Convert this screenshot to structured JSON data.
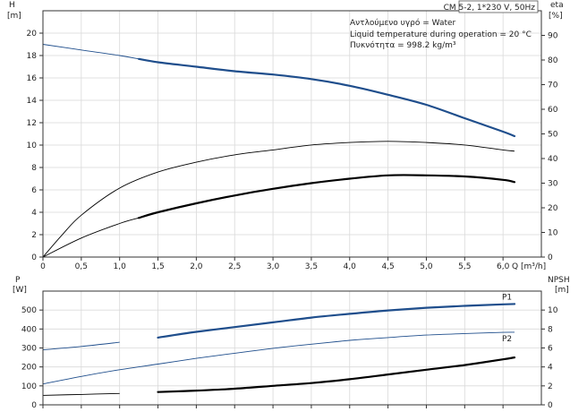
{
  "chart_data": [
    {
      "type": "line",
      "info": {
        "pump": "CM 5-2, 1*230 V, 50Hz",
        "liquid": "Αντλούμενο υγρό = Water",
        "temperature": "Liquid temperature during operation = 20 °C",
        "density": "Πυκνότητα = 998.2 kg/m³"
      },
      "x_axis": {
        "label": "Q [m³/h]",
        "range": [
          0,
          6.5
        ],
        "ticks": [
          0,
          0.5,
          1.0,
          1.5,
          2.0,
          2.5,
          3.0,
          3.5,
          4.0,
          4.5,
          5.0,
          5.5,
          6.0
        ],
        "tick_labels": [
          "0",
          "0,5",
          "1,0",
          "1,5",
          "2,0",
          "2,5",
          "3,0",
          "3,5",
          "4,0",
          "4,5",
          "5,0",
          "5,5",
          "6,0"
        ]
      },
      "y_left": {
        "label_top": "H",
        "label_unit": "[m]",
        "range": [
          0,
          22
        ],
        "ticks": [
          0,
          2,
          4,
          6,
          8,
          10,
          12,
          14,
          16,
          18,
          20
        ],
        "tick_labels": [
          "0",
          "2",
          "4",
          "6",
          "8",
          "10",
          "12",
          "14",
          "16",
          "18",
          "20"
        ]
      },
      "y_right": {
        "label_top": "eta",
        "label_unit": "[%]",
        "range": [
          0,
          100
        ],
        "ticks": [
          0,
          10,
          20,
          30,
          40,
          50,
          60,
          70,
          80,
          90
        ],
        "tick_labels": [
          "0",
          "10",
          "20",
          "30",
          "40",
          "50",
          "60",
          "70",
          "80",
          "90"
        ]
      },
      "grid": true,
      "series": [
        {
          "axis": "left",
          "color": "#1f4e8c",
          "thin_until": 1.25,
          "x": [
            0,
            0.5,
            1.0,
            1.25,
            1.5,
            2.0,
            2.5,
            3.0,
            3.5,
            4.0,
            4.5,
            5.0,
            5.5,
            6.0,
            6.15
          ],
          "y": [
            19.0,
            18.5,
            18.0,
            17.7,
            17.4,
            17.0,
            16.6,
            16.3,
            15.9,
            15.3,
            14.5,
            13.6,
            12.4,
            11.2,
            10.8
          ]
        },
        {
          "axis": "right",
          "color": "#000000",
          "thin_until": 6.2,
          "x": [
            0,
            0.25,
            0.5,
            1.0,
            1.5,
            2.0,
            2.5,
            3.0,
            3.5,
            4.0,
            4.5,
            5.0,
            5.5,
            6.0,
            6.15
          ],
          "y": [
            0,
            9,
            17,
            28,
            34.5,
            38.5,
            41.5,
            43.5,
            45.5,
            46.5,
            47,
            46.5,
            45.5,
            43.5,
            43
          ]
        },
        {
          "axis": "left",
          "color": "#000000",
          "thin_until": 1.25,
          "x": [
            0,
            0.5,
            1.0,
            1.25,
            1.5,
            2.0,
            2.5,
            3.0,
            3.5,
            4.0,
            4.5,
            5.0,
            5.5,
            6.0,
            6.15
          ],
          "y": [
            0,
            1.7,
            3.0,
            3.5,
            4.0,
            4.8,
            5.5,
            6.1,
            6.6,
            7.0,
            7.3,
            7.3,
            7.2,
            6.9,
            6.7
          ]
        }
      ]
    },
    {
      "type": "line",
      "x_axis": {
        "range": [
          0,
          6.5
        ]
      },
      "y_left": {
        "label_top": "P",
        "label_unit": "[W]",
        "range": [
          0,
          600
        ],
        "ticks": [
          0,
          100,
          200,
          300,
          400,
          500
        ],
        "tick_labels": [
          "0",
          "100",
          "200",
          "300",
          "400",
          "500"
        ]
      },
      "y_right": {
        "label_top": "NPSH",
        "label_unit": "[m]",
        "range": [
          0,
          12
        ],
        "ticks": [
          0,
          2,
          4,
          6,
          8,
          10
        ],
        "tick_labels": [
          "0",
          "2",
          "4",
          "6",
          "8",
          "10"
        ]
      },
      "grid": true,
      "series": [
        {
          "name": "P1",
          "axis": "left",
          "color": "#1f4e8c",
          "thin_until": 1.25,
          "x": [
            0,
            0.5,
            1.0,
            1.5,
            2.0,
            2.5,
            3.0,
            3.5,
            4.0,
            4.5,
            5.0,
            5.5,
            6.0,
            6.15
          ],
          "y": [
            290,
            308,
            330,
            355,
            385,
            410,
            435,
            460,
            480,
            498,
            512,
            522,
            530,
            532
          ]
        },
        {
          "name": "P2",
          "axis": "left",
          "color": "#1f4e8c",
          "thin_until": 6.2,
          "x": [
            0,
            0.5,
            1.0,
            1.5,
            2.0,
            2.5,
            3.0,
            3.5,
            4.0,
            4.5,
            5.0,
            5.5,
            6.0,
            6.15
          ],
          "y": [
            110,
            150,
            185,
            215,
            245,
            272,
            298,
            320,
            340,
            355,
            368,
            376,
            382,
            383
          ]
        },
        {
          "axis": "right",
          "color": "#000000",
          "thin_until": 1.25,
          "x": [
            0,
            0.5,
            1.0,
            1.5,
            2.0,
            2.5,
            3.0,
            3.5,
            4.0,
            4.5,
            5.0,
            5.5,
            6.0,
            6.15
          ],
          "y": [
            1.0,
            1.1,
            1.2,
            1.35,
            1.5,
            1.7,
            2.0,
            2.3,
            2.7,
            3.2,
            3.7,
            4.2,
            4.8,
            5.0
          ]
        }
      ]
    }
  ]
}
